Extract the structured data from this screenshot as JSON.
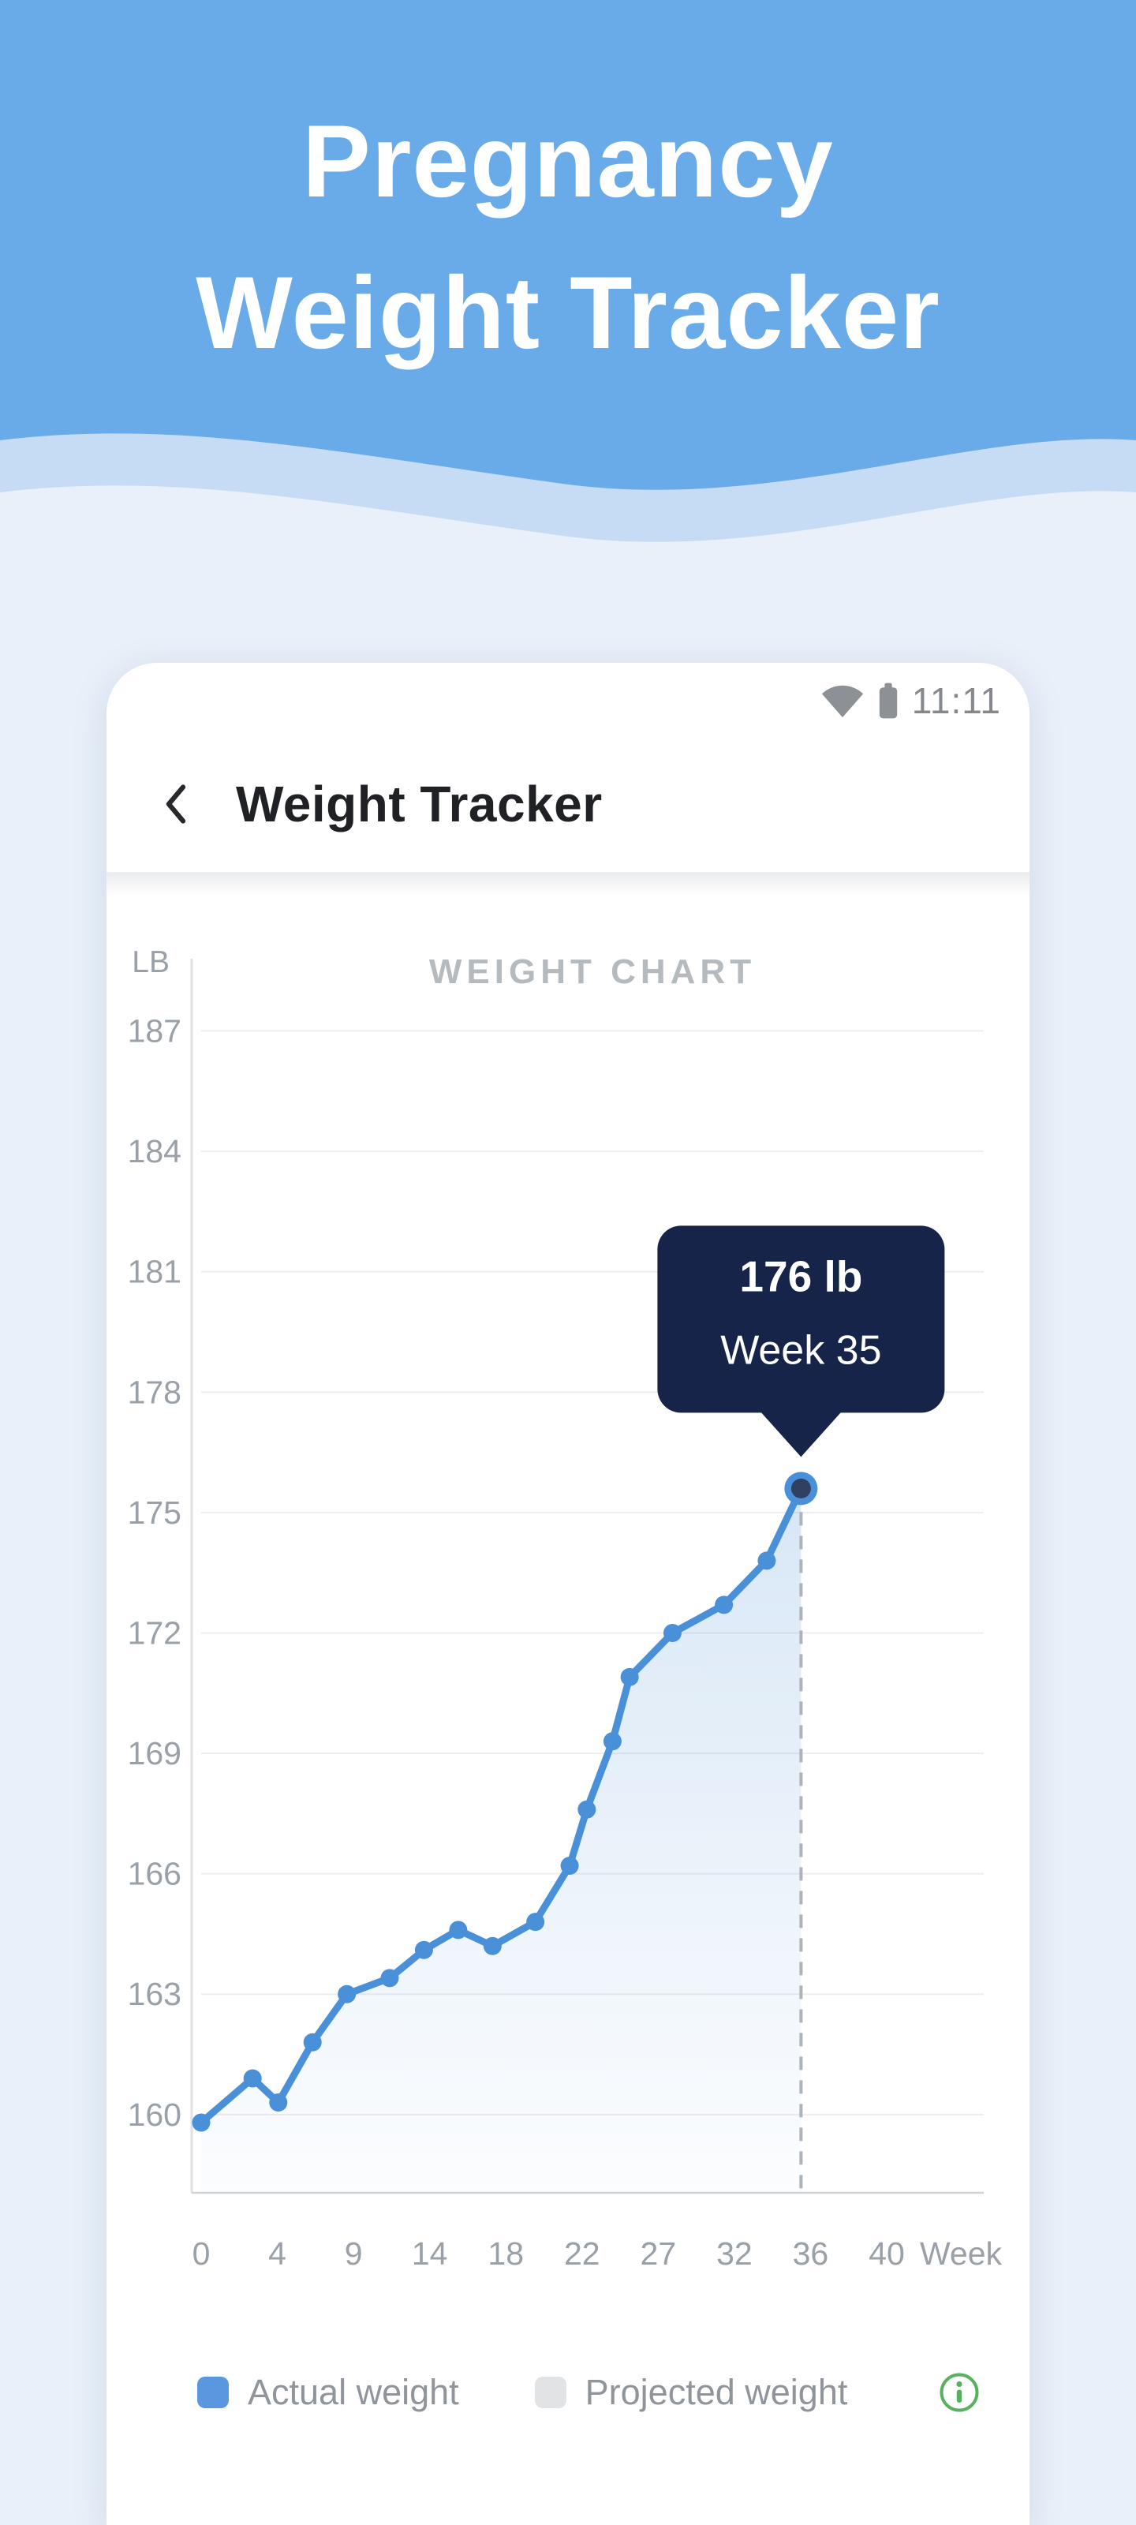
{
  "page": {
    "bg_color": "#e9f0f9"
  },
  "hero": {
    "title_line1": "Pregnancy",
    "title_line2": "Weight Tracker",
    "bg_color": "#69aae9",
    "wave_band_color": "#c6dcf5",
    "text_color": "#ffffff"
  },
  "status_bar": {
    "time": "11:11",
    "icon_color": "#8d9196"
  },
  "app_bar": {
    "title": "Weight Tracker",
    "back_icon": "chevron-left"
  },
  "chart_data": {
    "type": "line",
    "title": "WEIGHT CHART",
    "ylabel": "LB",
    "xlabel": "Week",
    "y_ticks": [
      187,
      184,
      181,
      178,
      175,
      172,
      169,
      166,
      163,
      160
    ],
    "x_ticks": [
      "0",
      "4",
      "9",
      "14",
      "18",
      "22",
      "27",
      "32",
      "36",
      "40"
    ],
    "xlim": [
      0,
      40
    ],
    "ylim": [
      158.05,
      188.8
    ],
    "grid": true,
    "series": [
      {
        "name": "Actual weight",
        "color": "#4a90d8",
        "points": [
          {
            "week": 0,
            "lb": 159.8
          },
          {
            "week": 3,
            "lb": 160.9
          },
          {
            "week": 4.5,
            "lb": 160.3
          },
          {
            "week": 6.5,
            "lb": 161.8
          },
          {
            "week": 8.5,
            "lb": 163.0
          },
          {
            "week": 11,
            "lb": 163.4
          },
          {
            "week": 13,
            "lb": 164.1
          },
          {
            "week": 15,
            "lb": 164.6
          },
          {
            "week": 17,
            "lb": 164.2
          },
          {
            "week": 19.5,
            "lb": 164.8
          },
          {
            "week": 21.5,
            "lb": 166.2
          },
          {
            "week": 22.5,
            "lb": 167.6
          },
          {
            "week": 24,
            "lb": 169.3
          },
          {
            "week": 25,
            "lb": 170.9
          },
          {
            "week": 27.5,
            "lb": 172.0
          },
          {
            "week": 30.5,
            "lb": 172.7
          },
          {
            "week": 33,
            "lb": 173.8
          },
          {
            "week": 35,
            "lb": 175.6
          }
        ]
      }
    ],
    "selected_point": {
      "week": 35,
      "lb": 175.6,
      "tooltip_value": "176 lb",
      "tooltip_week": "Week 35",
      "tooltip_bg": "#172449",
      "dot_inner_color": "#2f4061"
    },
    "colors": {
      "grid": "#ededee",
      "y_axis": "#dfe1e4",
      "x_axis": "#cfd3d7",
      "tick_text": "#9aa0a7",
      "title_text": "#b5babf",
      "dashed": "#adb3ba",
      "area_top": "rgba(77,145,214,0.22)",
      "area_bottom": "rgba(77,145,214,0.02)"
    }
  },
  "legend": {
    "items": [
      {
        "label": "Actual weight",
        "color": "#5b97de"
      },
      {
        "label": "Projected weight",
        "color": "#e1e3e5"
      }
    ],
    "info_icon_color": "#56b25c"
  }
}
